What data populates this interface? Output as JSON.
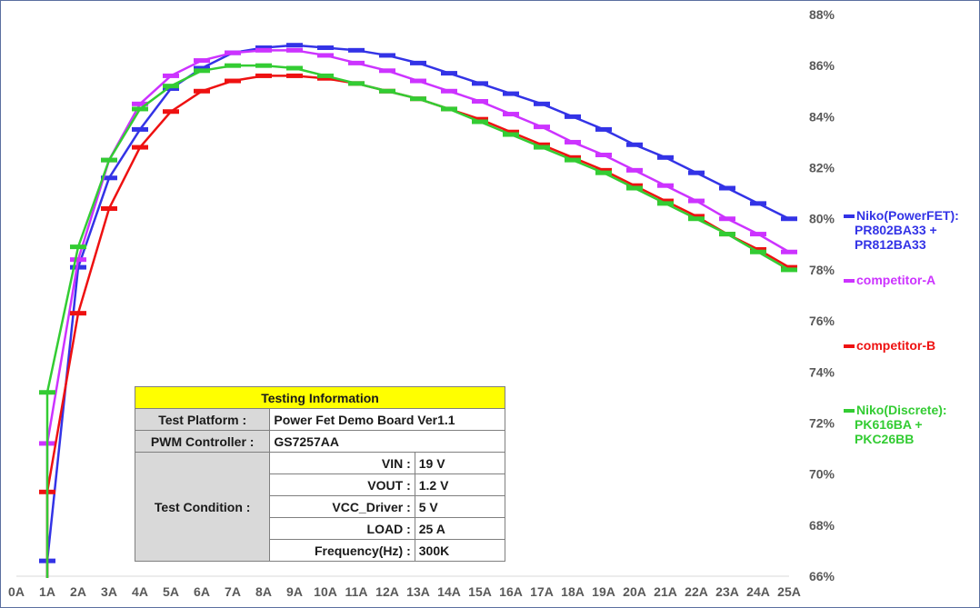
{
  "chart_data": {
    "type": "line",
    "x": [
      "0A",
      "1A",
      "2A",
      "3A",
      "4A",
      "5A",
      "6A",
      "7A",
      "8A",
      "9A",
      "10A",
      "11A",
      "12A",
      "13A",
      "14A",
      "15A",
      "16A",
      "17A",
      "18A",
      "19A",
      "20A",
      "21A",
      "22A",
      "23A",
      "24A",
      "25A"
    ],
    "y_ticks": [
      "66%",
      "68%",
      "70%",
      "72%",
      "74%",
      "76%",
      "78%",
      "80%",
      "82%",
      "84%",
      "86%",
      "88%"
    ],
    "ylim": [
      66,
      88
    ],
    "y_axis_position": "right",
    "grid": false,
    "legend_position": "right",
    "series": [
      {
        "name": "Niko(PowerFET): PR802BA33 + PR812BA33",
        "color": "#3333e6",
        "values": [
          null,
          66.6,
          78.1,
          81.6,
          83.5,
          85.1,
          85.9,
          86.5,
          86.7,
          86.8,
          86.7,
          86.6,
          86.4,
          86.1,
          85.7,
          85.3,
          84.9,
          84.5,
          84.0,
          83.5,
          82.9,
          82.4,
          81.8,
          81.2,
          80.6,
          80.0
        ]
      },
      {
        "name": "competitor-A",
        "color": "#cc33ff",
        "values": [
          null,
          71.2,
          78.4,
          82.3,
          84.5,
          85.6,
          86.2,
          86.5,
          86.6,
          86.6,
          86.4,
          86.1,
          85.8,
          85.4,
          85.0,
          84.6,
          84.1,
          83.6,
          83.0,
          82.5,
          81.9,
          81.3,
          80.7,
          80.0,
          79.4,
          78.7
        ]
      },
      {
        "name": "competitor-B",
        "color": "#ee1111",
        "values": [
          null,
          69.3,
          76.3,
          80.4,
          82.8,
          84.2,
          85.0,
          85.4,
          85.6,
          85.6,
          85.5,
          85.3,
          85.0,
          84.7,
          84.3,
          83.9,
          83.4,
          82.9,
          82.4,
          81.9,
          81.3,
          80.7,
          80.1,
          79.4,
          78.8,
          78.1
        ]
      },
      {
        "name": "Niko(Discrete): PK616BA + PKC26BB",
        "color": "#33cc33",
        "values": [
          null,
          73.2,
          78.9,
          82.3,
          84.3,
          85.2,
          85.8,
          86.0,
          86.0,
          85.9,
          85.6,
          85.3,
          85.0,
          84.7,
          84.3,
          83.8,
          83.3,
          82.8,
          82.3,
          81.8,
          81.2,
          80.6,
          80.0,
          79.4,
          78.7,
          78.0
        ]
      }
    ]
  },
  "legend": [
    {
      "line1": "Niko(PowerFET):",
      "line2": "PR802BA33 +",
      "line3": "PR812BA33",
      "color": "#3333e6"
    },
    {
      "line1": "competitor-A",
      "color": "#cc33ff"
    },
    {
      "line1": "competitor-B",
      "color": "#ee1111"
    },
    {
      "line1": "Niko(Discrete):",
      "line2": "PK616BA +",
      "line3": "PKC26BB",
      "color": "#33cc33"
    }
  ],
  "info_table": {
    "title": "Testing Information",
    "platform_label": "Test Platform :",
    "platform_value": "Power Fet Demo Board Ver1.1",
    "pwm_label": "PWM Controller :",
    "pwm_value": "GS7257AA",
    "condition_label": "Test Condition :",
    "conditions": [
      {
        "key": "VIN :",
        "value": "19 V"
      },
      {
        "key": "VOUT :",
        "value": "1.2 V"
      },
      {
        "key": "VCC_Driver :",
        "value": "5 V"
      },
      {
        "key": "LOAD :",
        "value": "25 A"
      },
      {
        "key": "Frequency(Hz) :",
        "value": "300K"
      }
    ]
  }
}
